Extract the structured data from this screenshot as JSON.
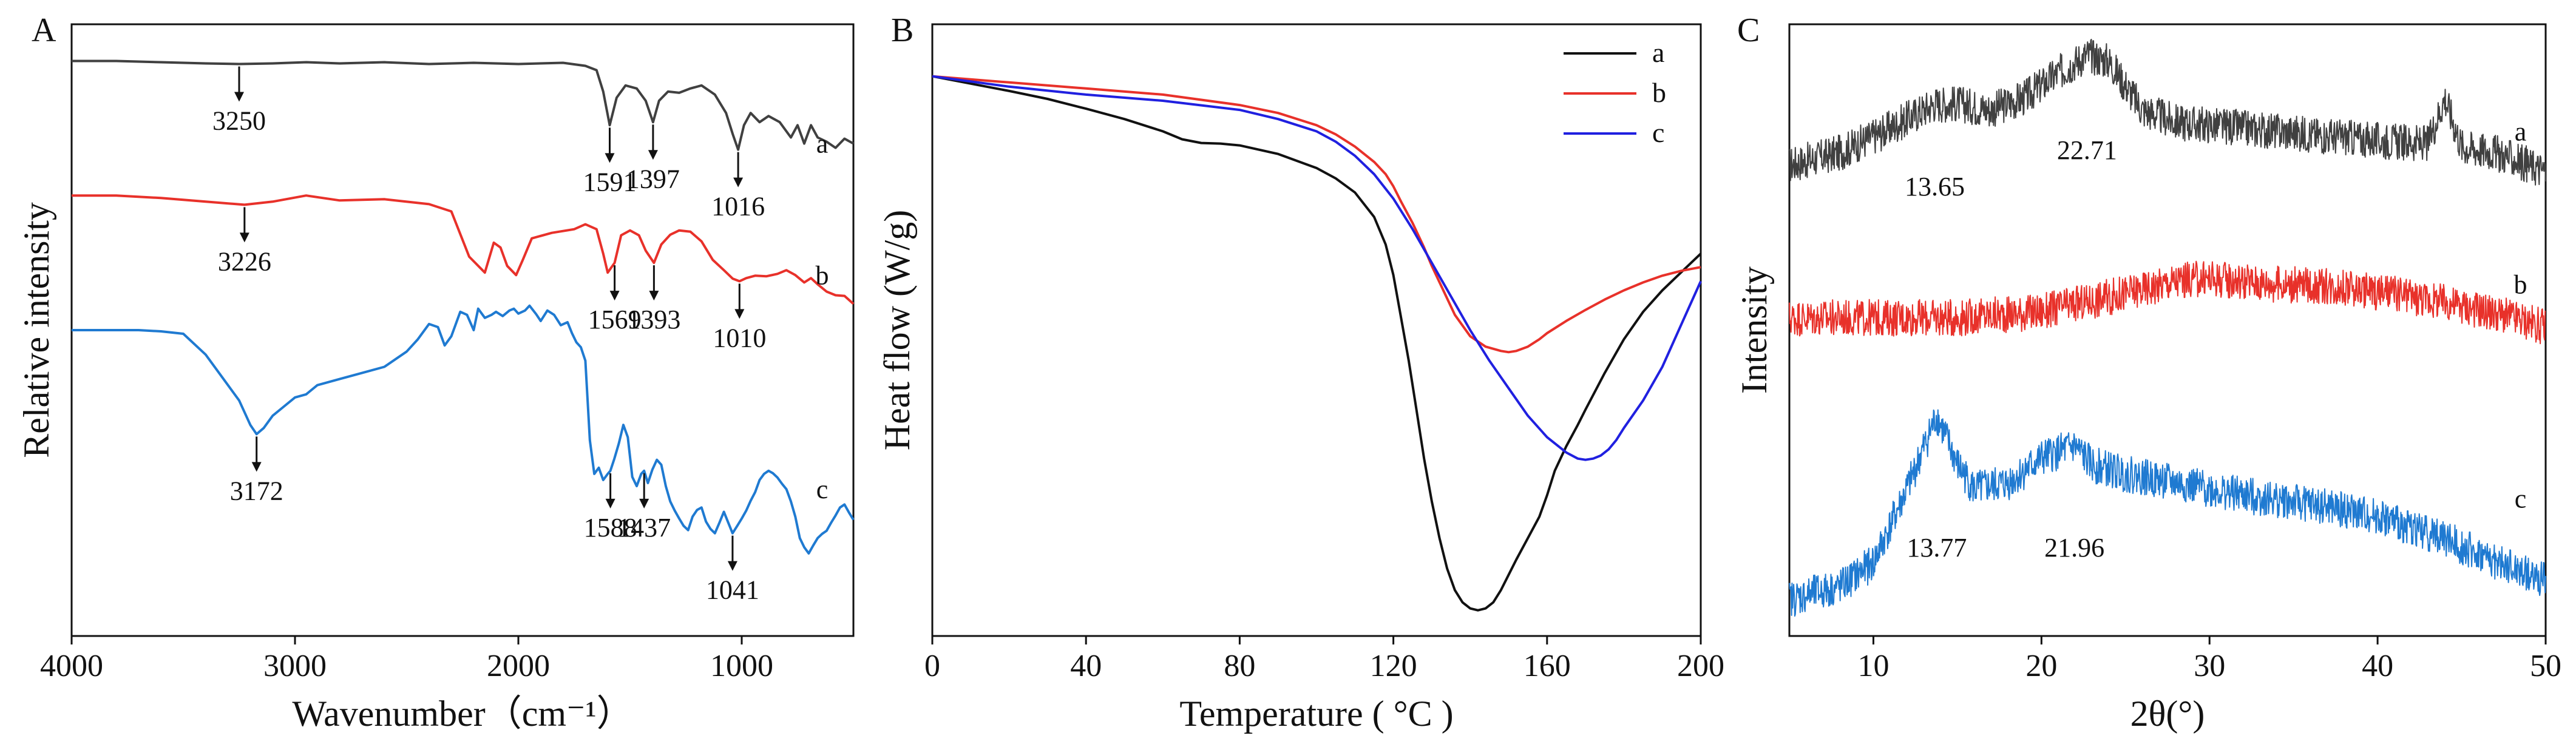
{
  "figure": {
    "background": "#ffffff",
    "axis_color": "#111111"
  },
  "chart_data": [
    {
      "id": "A",
      "type": "line",
      "panel_label": "A",
      "title": "",
      "xlabel": "Wavenumber（cm⁻¹）",
      "ylabel": "Relative intensity",
      "xlim": [
        4000,
        500
      ],
      "x_reversed": true,
      "ylim": [
        0,
        100
      ],
      "x_ticks": [
        4000,
        3000,
        2000,
        1000
      ],
      "x_tick_labels": [
        "4000",
        "3000",
        "2000",
        "1000"
      ],
      "y_ticks_shown": false,
      "series": [
        {
          "name": "a",
          "label": "a",
          "color": "#404040",
          "label_x": 640,
          "label_y": 79,
          "x": [
            4000,
            3800,
            3600,
            3400,
            3250,
            3100,
            2950,
            2800,
            2600,
            2400,
            2200,
            2000,
            1800,
            1700,
            1650,
            1620,
            1591,
            1560,
            1520,
            1470,
            1430,
            1397,
            1370,
            1330,
            1280,
            1230,
            1180,
            1120,
            1070,
            1040,
            1016,
            990,
            960,
            920,
            880,
            830,
            780,
            750,
            720,
            690,
            660,
            620,
            580,
            540,
            500
          ],
          "y": [
            94,
            94,
            93.8,
            93.6,
            93.5,
            93.6,
            93.8,
            93.6,
            93.8,
            93.5,
            93.7,
            93.5,
            93.7,
            93.2,
            92.5,
            89,
            83.5,
            88,
            90,
            89.5,
            87.5,
            84,
            87.5,
            89,
            88.8,
            89.5,
            90,
            88.5,
            85.5,
            82,
            79.5,
            83.5,
            85.5,
            84,
            85,
            84,
            81.5,
            83.5,
            80.5,
            83.5,
            81.5,
            80.8,
            79.8,
            81.3,
            80.5
          ]
        },
        {
          "name": "b",
          "label": "b",
          "color": "#e8312a",
          "label_x": 640,
          "label_y": 57.5,
          "x": [
            4000,
            3800,
            3600,
            3400,
            3226,
            3100,
            2950,
            2800,
            2600,
            2400,
            2300,
            2220,
            2150,
            2110,
            2080,
            2050,
            2010,
            1980,
            1940,
            1850,
            1750,
            1700,
            1650,
            1620,
            1600,
            1569,
            1540,
            1500,
            1460,
            1430,
            1393,
            1360,
            1320,
            1280,
            1230,
            1180,
            1130,
            1080,
            1040,
            1010,
            980,
            940,
            890,
            840,
            800,
            760,
            720,
            690,
            660,
            620,
            580,
            540,
            500
          ],
          "y": [
            72,
            72,
            71.6,
            71,
            70.5,
            71,
            72,
            71.2,
            71.4,
            70.6,
            69.4,
            62,
            59.4,
            64.3,
            63.5,
            60.5,
            59,
            61.5,
            65,
            65.9,
            66.5,
            67.3,
            66.5,
            62.5,
            59.4,
            61,
            65.5,
            66.3,
            65.5,
            63,
            61,
            64,
            65.6,
            66.3,
            66.1,
            64.5,
            61.5,
            59.8,
            58.4,
            58,
            58.5,
            58.9,
            58.8,
            59.2,
            59.8,
            59,
            57.8,
            58.5,
            57.5,
            56.3,
            55.7,
            55.6,
            54.3
          ]
        },
        {
          "name": "c",
          "label": "c",
          "color": "#1f7ad1",
          "label_x": 640,
          "label_y": 22.5,
          "x": [
            4000,
            3800,
            3700,
            3600,
            3500,
            3400,
            3300,
            3250,
            3200,
            3172,
            3140,
            3100,
            3050,
            3000,
            2950,
            2900,
            2800,
            2700,
            2600,
            2500,
            2450,
            2400,
            2360,
            2330,
            2300,
            2260,
            2230,
            2200,
            2180,
            2150,
            2120,
            2100,
            2070,
            2040,
            2020,
            2000,
            1970,
            1950,
            1920,
            1900,
            1870,
            1840,
            1810,
            1780,
            1760,
            1740,
            1720,
            1700,
            1680,
            1660,
            1640,
            1620,
            1600,
            1588,
            1570,
            1550,
            1530,
            1510,
            1490,
            1470,
            1450,
            1437,
            1420,
            1400,
            1380,
            1360,
            1340,
            1320,
            1300,
            1280,
            1260,
            1240,
            1220,
            1200,
            1180,
            1160,
            1140,
            1120,
            1100,
            1080,
            1060,
            1041,
            1020,
            1000,
            980,
            960,
            940,
            920,
            900,
            880,
            860,
            840,
            820,
            800,
            780,
            760,
            740,
            720,
            700,
            680,
            660,
            640,
            620,
            600,
            580,
            560,
            540,
            520,
            500
          ],
          "y": [
            50,
            50,
            50,
            49.8,
            49.4,
            46,
            41,
            38.5,
            34.5,
            33,
            34,
            36,
            37.5,
            39,
            39.5,
            41,
            42,
            43,
            44,
            46.5,
            48.5,
            51,
            50.5,
            47.5,
            49,
            53,
            52.5,
            50,
            53.5,
            52,
            52.5,
            53,
            52.3,
            53.2,
            53.5,
            52.7,
            53.2,
            54,
            52.6,
            51.5,
            53.2,
            52.5,
            50.8,
            51.3,
            49.5,
            48,
            47.2,
            45,
            32,
            26.5,
            27.5,
            25.5,
            26.5,
            27,
            29,
            31.5,
            34.5,
            32.5,
            26,
            24.5,
            26.5,
            27,
            25,
            27.2,
            28.8,
            28,
            24.5,
            22,
            20.5,
            19.2,
            18,
            17.3,
            19.5,
            20.6,
            21,
            18.7,
            17.5,
            16.8,
            18.5,
            20.3,
            18.5,
            16.8,
            18,
            19.2,
            20.5,
            22.1,
            23.5,
            25.5,
            26.5,
            27,
            26.6,
            25.9,
            24.9,
            24,
            22,
            19.5,
            16,
            14.5,
            13.5,
            14.8,
            16,
            16.7,
            17.2,
            18.5,
            19.7,
            21,
            21.5,
            20.2,
            19
          ]
        }
      ],
      "annotations": [
        {
          "series": "a",
          "x": 3250,
          "label": "3250"
        },
        {
          "series": "a",
          "x": 1591,
          "label": "1591"
        },
        {
          "series": "a",
          "x": 1397,
          "label": "1397"
        },
        {
          "series": "a",
          "x": 1016,
          "label": "1016"
        },
        {
          "series": "b",
          "x": 3226,
          "label": "3226"
        },
        {
          "series": "b",
          "x": 1569,
          "label": "1569"
        },
        {
          "series": "b",
          "x": 1393,
          "label": "1393"
        },
        {
          "series": "b",
          "x": 1010,
          "label": "1010"
        },
        {
          "series": "c",
          "x": 3172,
          "label": "3172"
        },
        {
          "series": "c",
          "x": 1588,
          "label": "1588"
        },
        {
          "series": "c",
          "x": 1437,
          "label": "1437"
        },
        {
          "series": "c",
          "x": 1041,
          "label": "1041"
        }
      ]
    },
    {
      "id": "B",
      "type": "line",
      "panel_label": "B",
      "title": "",
      "xlabel": "Temperature ( °C )",
      "ylabel": "Heat flow (W/g)",
      "xlim": [
        0,
        200
      ],
      "ylim": [
        0,
        100
      ],
      "x_ticks": [
        0,
        40,
        80,
        120,
        160,
        200
      ],
      "x_tick_labels": [
        "0",
        "40",
        "80",
        "120",
        "160",
        "200"
      ],
      "y_ticks_shown": false,
      "legend": {
        "position": "top-right",
        "entries": [
          "a",
          "b",
          "c"
        ]
      },
      "series": [
        {
          "name": "a",
          "color": "#111111",
          "x": [
            0,
            10,
            20,
            30,
            40,
            50,
            60,
            65,
            70,
            75,
            80,
            90,
            100,
            105,
            110,
            115,
            118,
            120,
            122,
            124,
            126,
            128,
            130,
            132,
            134,
            136,
            138,
            140,
            142,
            144,
            146,
            148,
            150,
            152,
            155,
            158,
            160,
            162,
            165,
            168,
            170,
            175,
            180,
            185,
            190,
            195,
            200
          ],
          "y": [
            91.5,
            90.3,
            89.1,
            87.8,
            86.2,
            84.5,
            82.5,
            81.2,
            80.6,
            80.5,
            80.2,
            78.8,
            76.5,
            74.8,
            72.5,
            68.5,
            64,
            59,
            52,
            45,
            37,
            29,
            22,
            16,
            11,
            7.5,
            5.5,
            4.5,
            4.2,
            4.5,
            5.5,
            7.5,
            10,
            12.5,
            16,
            19.5,
            23,
            27,
            31,
            34.5,
            37,
            43,
            48.5,
            53,
            56.5,
            59.5,
            62.5
          ]
        },
        {
          "name": "b",
          "color": "#e8312a",
          "x": [
            0,
            20,
            40,
            60,
            80,
            90,
            100,
            105,
            110,
            115,
            118,
            120,
            122,
            125,
            128,
            130,
            133,
            136,
            140,
            144,
            148,
            150,
            152,
            155,
            158,
            160,
            165,
            170,
            175,
            180,
            185,
            190,
            195,
            200
          ],
          "y": [
            91.5,
            90.5,
            89.5,
            88.5,
            86.8,
            85.5,
            83.5,
            82,
            80,
            77.5,
            75.5,
            73.5,
            71,
            67.5,
            63.5,
            60.5,
            56.5,
            52.5,
            49,
            47.3,
            46.6,
            46.4,
            46.6,
            47.3,
            48.5,
            49.5,
            51.5,
            53.3,
            55,
            56.5,
            57.8,
            58.9,
            59.7,
            60.3
          ]
        },
        {
          "name": "c",
          "color": "#2020e0",
          "x": [
            0,
            20,
            40,
            60,
            80,
            90,
            100,
            105,
            110,
            115,
            120,
            125,
            130,
            135,
            140,
            145,
            150,
            155,
            160,
            165,
            168,
            170,
            172,
            174,
            176,
            178,
            180,
            185,
            190,
            195,
            200
          ],
          "y": [
            91.5,
            89.8,
            88.5,
            87.5,
            86,
            84.5,
            82.5,
            80.8,
            78.5,
            75.5,
            71.5,
            66.5,
            61,
            55.5,
            50,
            45,
            40.5,
            36,
            32.5,
            30,
            29,
            28.8,
            29,
            29.5,
            30.5,
            32,
            34,
            38.5,
            44,
            51,
            58
          ]
        }
      ]
    },
    {
      "id": "C",
      "type": "line",
      "panel_label": "C",
      "title": "",
      "xlabel": "2θ(°)",
      "ylabel": "Intensity",
      "xlim": [
        5,
        50
      ],
      "ylim": [
        0,
        100
      ],
      "x_ticks": [
        10,
        20,
        30,
        40,
        50
      ],
      "x_tick_labels": [
        "10",
        "20",
        "30",
        "40",
        "50"
      ],
      "y_ticks_shown": false,
      "noise_amplitude": 3,
      "series": [
        {
          "name": "a",
          "label": "a",
          "color": "#404040",
          "label_x": 48.5,
          "label_y": 81,
          "x": [
            5,
            8,
            11,
            13.65,
            15,
            17,
            19,
            21,
            22.71,
            24,
            25,
            26,
            28,
            32,
            36,
            40,
            43,
            44,
            45,
            47,
            50
          ],
          "y": [
            77,
            79,
            83,
            87,
            87,
            86,
            88,
            92,
            95,
            94,
            90,
            86,
            84,
            83,
            82,
            81,
            80.5,
            88,
            80,
            79,
            76
          ]
        },
        {
          "name": "b",
          "label": "b",
          "color": "#e8312a",
          "label_x": 48.5,
          "label_y": 56,
          "x": [
            5,
            10,
            15,
            20,
            25,
            28,
            30,
            34,
            38,
            42,
            45,
            48,
            50
          ],
          "y": [
            52,
            52,
            52,
            53,
            56,
            58,
            58.5,
            57.5,
            57,
            55.5,
            54,
            52,
            50.5
          ]
        },
        {
          "name": "c",
          "label": "c",
          "color": "#1f7ad1",
          "label_x": 48.5,
          "label_y": 21,
          "x": [
            5,
            8,
            10,
            12,
            13.77,
            15,
            16,
            18,
            20,
            21.96,
            23,
            25,
            28,
            32,
            36,
            40,
            44,
            47,
            50
          ],
          "y": [
            6,
            8,
            12,
            24,
            36,
            28,
            24,
            25,
            29,
            31,
            28,
            26.5,
            25,
            23,
            21.5,
            19.5,
            16,
            12,
            9
          ]
        }
      ],
      "annotations": [
        {
          "series": "a",
          "x": 13.65,
          "label": "13.65",
          "y": 72
        },
        {
          "series": "a",
          "x": 22.71,
          "label": "22.71",
          "y": 78
        },
        {
          "series": "c",
          "x": 13.77,
          "label": "13.77",
          "y": 13
        },
        {
          "series": "c",
          "x": 21.96,
          "label": "21.96",
          "y": 13
        }
      ]
    }
  ]
}
